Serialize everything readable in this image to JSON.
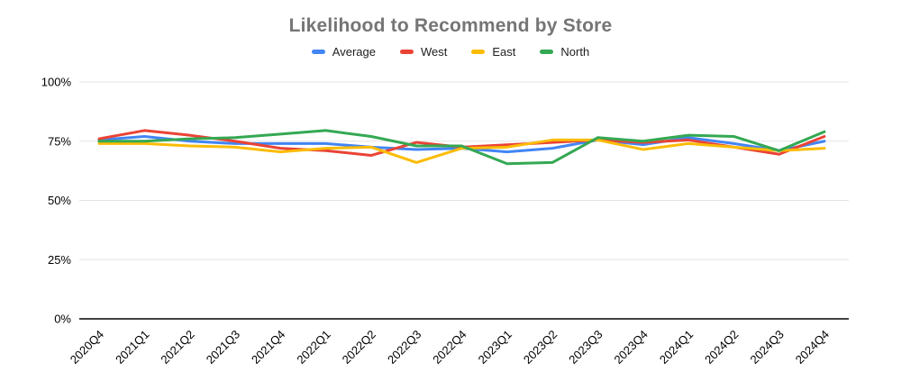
{
  "title": "Likelihood to Recommend by Store",
  "colors": {
    "background": "#ffffff",
    "title_text": "#757575",
    "grid": "#e3e3e3",
    "axis": "#424242",
    "tick_text": "#000000",
    "series_average": "#4285f4",
    "series_west": "#ea4335",
    "series_east": "#fbbc04",
    "series_north": "#34a853"
  },
  "chart_data": {
    "type": "line",
    "title": "Likelihood to Recommend by Store",
    "xlabel": "",
    "ylabel": "",
    "ylim": [
      0,
      100
    ],
    "y_ticks": [
      "0%",
      "25%",
      "50%",
      "75%",
      "100%"
    ],
    "grid": true,
    "legend_position": "top",
    "categories": [
      "2020Q4",
      "2021Q1",
      "2021Q2",
      "2021Q3",
      "2021Q4",
      "2022Q1",
      "2022Q2",
      "2022Q3",
      "2022Q4",
      "2023Q1",
      "2023Q2",
      "2023Q3",
      "2023Q4",
      "2024Q1",
      "2024Q2",
      "2024Q3",
      "2024Q4"
    ],
    "series": [
      {
        "name": "Average",
        "color": "#4285f4",
        "values": [
          75.5,
          77,
          75,
          74,
          74,
          74,
          72.5,
          71.5,
          72,
          70.5,
          72,
          75.5,
          73.5,
          76.5,
          74,
          71,
          75
        ]
      },
      {
        "name": "West",
        "color": "#ea4335",
        "values": [
          76,
          79.5,
          77.5,
          75,
          72,
          71,
          69,
          74.5,
          72.5,
          73.5,
          74.5,
          75.5,
          74.5,
          75.5,
          72.5,
          69.5,
          77
        ]
      },
      {
        "name": "East",
        "color": "#fbbc04",
        "values": [
          74,
          74,
          73,
          72.5,
          70.5,
          72,
          72.5,
          66,
          72,
          72.5,
          75.5,
          75.5,
          71.5,
          74,
          72.5,
          71,
          72
        ]
      },
      {
        "name": "North",
        "color": "#34a853",
        "values": [
          75,
          75,
          76,
          76.5,
          78,
          79.5,
          77,
          73,
          73,
          65.5,
          66,
          76.5,
          75,
          77.5,
          77,
          71,
          79
        ]
      }
    ]
  }
}
